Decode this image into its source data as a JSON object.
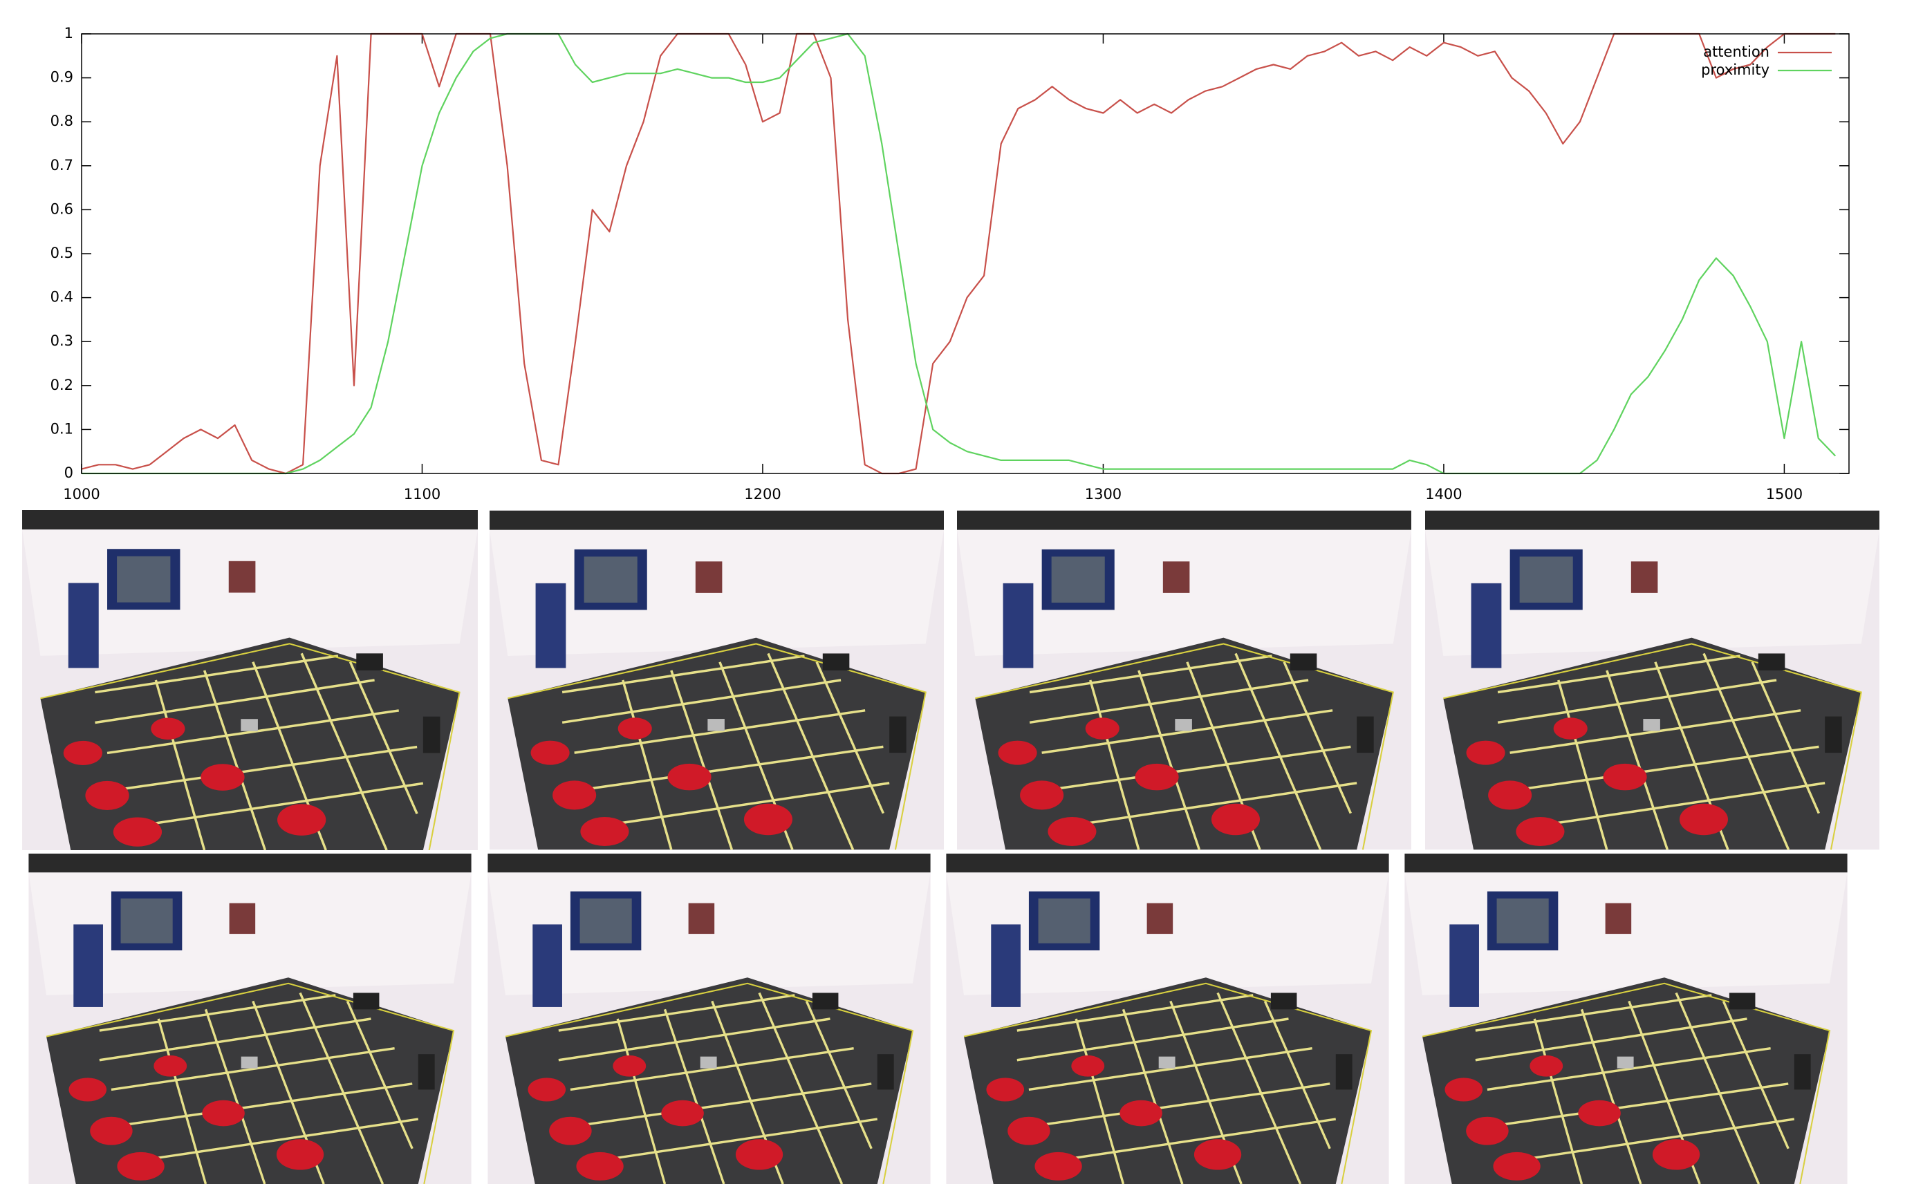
{
  "chart_data": {
    "type": "line",
    "x": [
      1000,
      1005,
      1010,
      1015,
      1020,
      1025,
      1030,
      1035,
      1040,
      1045,
      1050,
      1055,
      1060,
      1065,
      1070,
      1075,
      1080,
      1085,
      1090,
      1095,
      1100,
      1105,
      1110,
      1115,
      1120,
      1125,
      1130,
      1135,
      1140,
      1145,
      1150,
      1155,
      1160,
      1165,
      1170,
      1175,
      1180,
      1185,
      1190,
      1195,
      1200,
      1205,
      1210,
      1215,
      1220,
      1225,
      1230,
      1235,
      1240,
      1245,
      1250,
      1255,
      1260,
      1265,
      1270,
      1275,
      1280,
      1285,
      1290,
      1295,
      1300,
      1305,
      1310,
      1315,
      1320,
      1325,
      1330,
      1335,
      1340,
      1345,
      1350,
      1355,
      1360,
      1365,
      1370,
      1375,
      1380,
      1385,
      1390,
      1395,
      1400,
      1405,
      1410,
      1415,
      1420,
      1425,
      1430,
      1435,
      1440,
      1445,
      1450,
      1455,
      1460,
      1465,
      1470,
      1475,
      1480,
      1485,
      1490,
      1495,
      1500,
      1505,
      1510,
      1515
    ],
    "series": [
      {
        "name": "attention",
        "color": "#c8504a",
        "values": [
          0.01,
          0.02,
          0.02,
          0.01,
          0.02,
          0.05,
          0.08,
          0.1,
          0.08,
          0.11,
          0.03,
          0.01,
          0,
          0.02,
          0.7,
          0.95,
          0.2,
          1,
          1,
          1,
          1,
          0.88,
          1,
          1,
          1,
          0.7,
          0.25,
          0.03,
          0.02,
          0.3,
          0.6,
          0.55,
          0.7,
          0.8,
          0.95,
          1,
          1,
          1,
          1,
          0.93,
          0.8,
          0.82,
          1,
          1,
          0.9,
          0.35,
          0.02,
          0,
          0,
          0.01,
          0.25,
          0.3,
          0.4,
          0.45,
          0.75,
          0.83,
          0.85,
          0.88,
          0.85,
          0.83,
          0.82,
          0.85,
          0.82,
          0.84,
          0.82,
          0.85,
          0.87,
          0.88,
          0.9,
          0.92,
          0.93,
          0.92,
          0.95,
          0.96,
          0.98,
          0.95,
          0.96,
          0.94,
          0.97,
          0.95,
          0.98,
          0.97,
          0.95,
          0.96,
          0.9,
          0.87,
          0.82,
          0.75,
          0.8,
          0.9,
          1,
          1,
          1,
          1,
          1,
          1,
          0.9,
          0.92,
          0.93,
          0.97,
          1,
          1,
          1,
          1
        ]
      },
      {
        "name": "proximity",
        "color": "#5fd35f",
        "values": [
          0,
          0,
          0,
          0,
          0,
          0,
          0,
          0,
          0,
          0,
          0,
          0,
          0,
          0.01,
          0.03,
          0.06,
          0.09,
          0.15,
          0.3,
          0.5,
          0.7,
          0.82,
          0.9,
          0.96,
          0.99,
          1,
          1,
          1,
          1,
          0.93,
          0.89,
          0.9,
          0.91,
          0.91,
          0.91,
          0.92,
          0.91,
          0.9,
          0.9,
          0.89,
          0.89,
          0.9,
          0.94,
          0.98,
          0.99,
          1,
          0.95,
          0.75,
          0.5,
          0.25,
          0.1,
          0.07,
          0.05,
          0.04,
          0.03,
          0.03,
          0.03,
          0.03,
          0.03,
          0.02,
          0.01,
          0.01,
          0.01,
          0.01,
          0.01,
          0.01,
          0.01,
          0.01,
          0.01,
          0.01,
          0.01,
          0.01,
          0.01,
          0.01,
          0.01,
          0.01,
          0.01,
          0.01,
          0.03,
          0.02,
          0,
          0,
          0,
          0,
          0,
          0,
          0,
          0,
          0,
          0.03,
          0.1,
          0.18,
          0.22,
          0.28,
          0.35,
          0.44,
          0.49,
          0.45,
          0.38,
          0.3,
          0.08,
          0.3,
          0.08,
          0.04
        ]
      }
    ],
    "xlim": [
      1000,
      1519
    ],
    "ylim": [
      0,
      1
    ],
    "xticks": [
      1000,
      1100,
      1200,
      1300,
      1400,
      1500
    ],
    "yticks": [
      0,
      0.1,
      0.2,
      0.3,
      0.4,
      0.5,
      0.6,
      0.7,
      0.8,
      0.9,
      1
    ],
    "legend": "upper right"
  }
}
